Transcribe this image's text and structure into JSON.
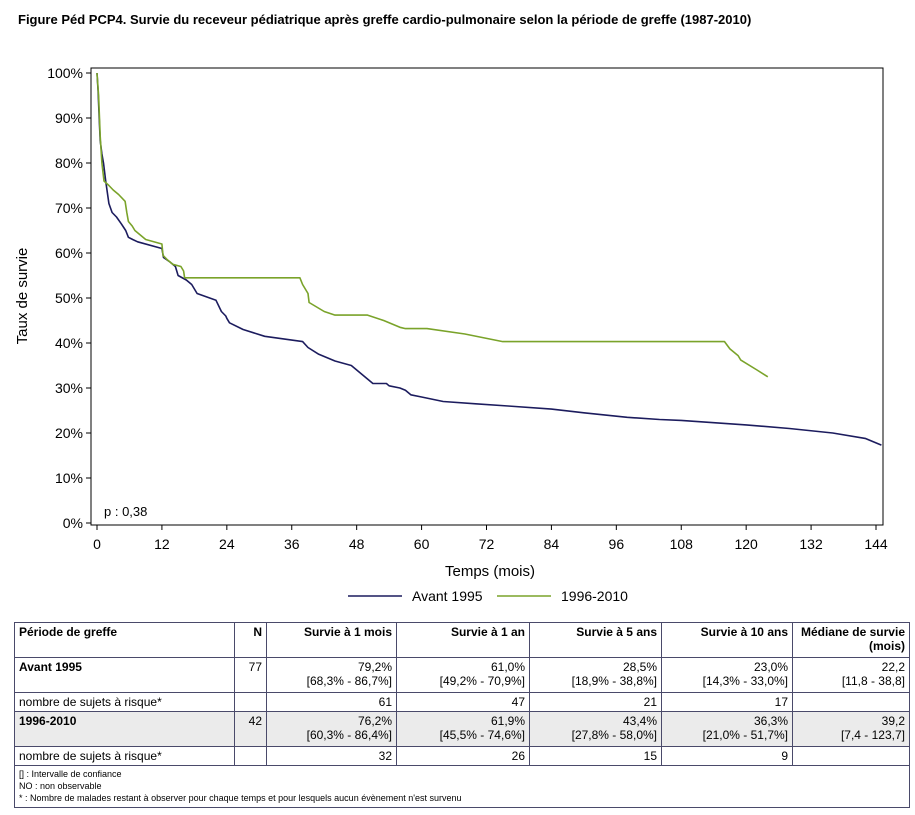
{
  "title": "Figure Péd PCP4. Survie du receveur pédiatrique après greffe cardio-pulmonaire selon la période de greffe (1987-2010)",
  "chart_data": {
    "type": "line",
    "step": true,
    "xlabel": "Temps (mois)",
    "ylabel": "Taux de survie",
    "xlim": [
      0,
      145
    ],
    "ylim": [
      0,
      100
    ],
    "xticks": [
      0,
      12,
      24,
      36,
      48,
      60,
      72,
      84,
      96,
      108,
      120,
      132,
      144
    ],
    "yticks": [
      0,
      10,
      20,
      30,
      40,
      50,
      60,
      70,
      80,
      90,
      100
    ],
    "ytick_labels": [
      "0%",
      "10%",
      "20%",
      "30%",
      "40%",
      "50%",
      "60%",
      "70%",
      "80%",
      "90%",
      "100%"
    ],
    "annotation": "p : 0,38",
    "legend_position": "bottom",
    "grid": false,
    "series": [
      {
        "name": "Avant 1995",
        "color": "#1c1c5e",
        "points": [
          [
            0,
            100
          ],
          [
            0.2,
            96
          ],
          [
            0.4,
            90
          ],
          [
            0.6,
            85
          ],
          [
            0.9,
            82
          ],
          [
            1.2,
            80
          ],
          [
            1.6,
            76
          ],
          [
            2.2,
            71
          ],
          [
            2.8,
            69
          ],
          [
            3.6,
            68
          ],
          [
            4.5,
            66.5
          ],
          [
            5.3,
            65
          ],
          [
            5.8,
            63.5
          ],
          [
            6.6,
            63
          ],
          [
            7.5,
            62.5
          ],
          [
            12,
            61
          ],
          [
            12.3,
            59
          ],
          [
            13.5,
            58
          ],
          [
            14.5,
            57
          ],
          [
            15,
            55
          ],
          [
            16.5,
            54
          ],
          [
            17.5,
            53
          ],
          [
            18.5,
            51
          ],
          [
            22,
            49.5
          ],
          [
            23,
            47
          ],
          [
            23.8,
            46
          ],
          [
            24,
            45.5
          ],
          [
            24.5,
            44.5
          ],
          [
            27,
            43
          ],
          [
            31,
            41.5
          ],
          [
            38,
            40.3
          ],
          [
            39,
            39
          ],
          [
            41,
            37.5
          ],
          [
            44,
            36
          ],
          [
            47,
            35
          ],
          [
            48,
            34
          ],
          [
            49,
            33
          ],
          [
            50,
            32
          ],
          [
            51,
            31
          ],
          [
            53.5,
            31
          ],
          [
            54,
            30.5
          ],
          [
            56,
            30
          ],
          [
            57,
            29.5
          ],
          [
            58,
            28.5
          ],
          [
            60,
            28
          ],
          [
            64,
            27
          ],
          [
            70,
            26.5
          ],
          [
            76,
            26
          ],
          [
            84,
            25.3
          ],
          [
            90,
            24.5
          ],
          [
            98,
            23.5
          ],
          [
            104,
            23
          ],
          [
            108,
            22.8
          ],
          [
            120,
            21.8
          ],
          [
            128,
            21
          ],
          [
            136,
            20
          ],
          [
            142,
            18.8
          ],
          [
            144,
            17.8
          ],
          [
            145,
            17.3
          ]
        ]
      },
      {
        "name": "1996-2010",
        "color": "#7aa32a",
        "points": [
          [
            0,
            100
          ],
          [
            0.3,
            95
          ],
          [
            0.6,
            86
          ],
          [
            0.9,
            80
          ],
          [
            1.3,
            76
          ],
          [
            2.2,
            75
          ],
          [
            3,
            74
          ],
          [
            4,
            73
          ],
          [
            5.2,
            71.5
          ],
          [
            5.5,
            69
          ],
          [
            5.8,
            67
          ],
          [
            6.5,
            66
          ],
          [
            7,
            65
          ],
          [
            9,
            63
          ],
          [
            12,
            62
          ],
          [
            12.2,
            59.5
          ],
          [
            13,
            58.5
          ],
          [
            14,
            57.5
          ],
          [
            15.5,
            57
          ],
          [
            16,
            56
          ],
          [
            16.2,
            54.5
          ],
          [
            37.5,
            54.5
          ],
          [
            38,
            53
          ],
          [
            39,
            51
          ],
          [
            39.2,
            49
          ],
          [
            42,
            47
          ],
          [
            44,
            46.2
          ],
          [
            50,
            46.2
          ],
          [
            53,
            45
          ],
          [
            56,
            43.5
          ],
          [
            57,
            43.2
          ],
          [
            61,
            43.2
          ],
          [
            68,
            42
          ],
          [
            75,
            40.3
          ],
          [
            116,
            40.3
          ],
          [
            117,
            38.7
          ],
          [
            118.5,
            37.2
          ],
          [
            119,
            36.2
          ],
          [
            122,
            34
          ],
          [
            124,
            32.5
          ]
        ]
      }
    ]
  },
  "table": {
    "headers": [
      "Période de greffe",
      "N",
      "Survie à 1 mois",
      "Survie à 1 an",
      "Survie à 5 ans",
      "Survie à 10 ans",
      "Médiane de survie (mois)"
    ],
    "groups": [
      {
        "label": "Avant 1995",
        "n": "77",
        "values": [
          {
            "v": "79,2%",
            "ci": "[68,3% - 86,7%]"
          },
          {
            "v": "61,0%",
            "ci": "[49,2% - 70,9%]"
          },
          {
            "v": "28,5%",
            "ci": "[18,9% - 38,8%]"
          },
          {
            "v": "23,0%",
            "ci": "[14,3% - 33,0%]"
          },
          {
            "v": "22,2",
            "ci": "[11,8 - 38,8]"
          }
        ],
        "risk_label": "nombre de sujets à risque*",
        "risk": [
          "61",
          "47",
          "21",
          "17",
          ""
        ]
      },
      {
        "label": "1996-2010",
        "n": "42",
        "values": [
          {
            "v": "76,2%",
            "ci": "[60,3% - 86,4%]"
          },
          {
            "v": "61,9%",
            "ci": "[45,5% - 74,6%]"
          },
          {
            "v": "43,4%",
            "ci": "[27,8% - 58,0%]"
          },
          {
            "v": "36,3%",
            "ci": "[21,0% - 51,7%]"
          },
          {
            "v": "39,2",
            "ci": "[7,4 - 123,7]"
          }
        ],
        "risk_label": "nombre de sujets à risque*",
        "risk": [
          "32",
          "26",
          "15",
          "9",
          ""
        ]
      }
    ],
    "notes": [
      "[] : Intervalle de confiance",
      "NO : non observable",
      "* : Nombre de malades restant à observer pour chaque temps et pour lesquels aucun évènement n'est survenu"
    ]
  }
}
